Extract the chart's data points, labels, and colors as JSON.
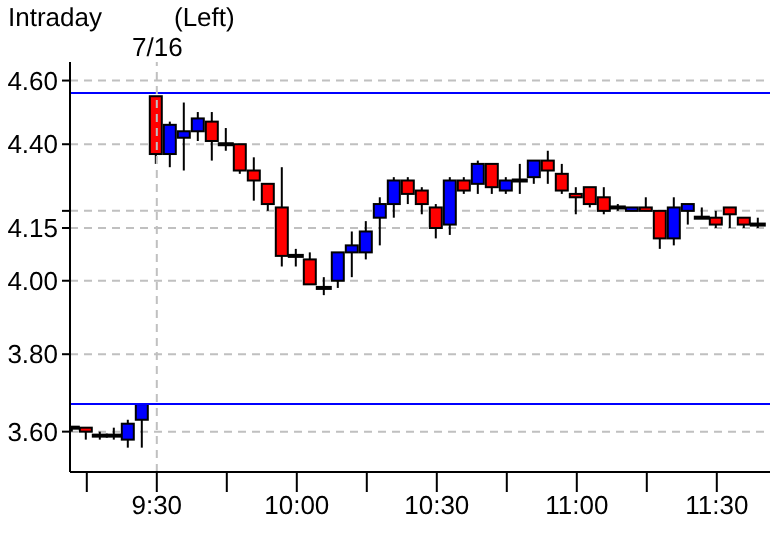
{
  "chart_data": {
    "type": "candlestick",
    "title": "Intraday",
    "subtitle": "(Left)",
    "x": [
      9.2,
      9.25,
      9.3,
      9.35,
      9.4,
      9.45,
      9.5,
      9.55,
      9.6,
      9.65,
      9.7,
      9.75,
      9.8,
      9.85,
      9.9,
      9.95,
      10,
      10.05,
      10.1,
      10.15,
      10.2,
      10.25,
      10.3,
      10.35,
      10.4,
      10.45,
      10.5,
      10.55,
      10.6,
      10.65,
      10.7,
      10.75,
      10.8,
      10.85,
      10.9,
      10.95,
      11,
      11.05,
      11.1,
      11.15,
      11.2,
      11.25,
      11.3,
      11.35,
      11.4,
      11.45,
      11.5,
      11.55,
      11.6,
      11.65
    ],
    "ohlc": [
      [
        3.61,
        3.61,
        3.6,
        3.61
      ],
      [
        3.61,
        3.61,
        3.58,
        3.6
      ],
      [
        3.59,
        3.6,
        3.58,
        3.59
      ],
      [
        3.59,
        3.61,
        3.58,
        3.59
      ],
      [
        3.58,
        3.63,
        3.56,
        3.62
      ],
      [
        3.63,
        3.67,
        3.56,
        3.67
      ],
      [
        4.55,
        4.55,
        4.34,
        4.37
      ],
      [
        4.37,
        4.47,
        4.33,
        4.46
      ],
      [
        4.42,
        4.53,
        4.32,
        4.44
      ],
      [
        4.44,
        4.5,
        4.41,
        4.48
      ],
      [
        4.47,
        4.5,
        4.35,
        4.41
      ],
      [
        4.4,
        4.45,
        4.38,
        4.4
      ],
      [
        4.4,
        4.4,
        4.31,
        4.32
      ],
      [
        4.32,
        4.36,
        4.23,
        4.29
      ],
      [
        4.28,
        4.28,
        4.2,
        4.22
      ],
      [
        4.21,
        4.33,
        4.04,
        4.07
      ],
      [
        4.07,
        4.09,
        4.04,
        4.07
      ],
      [
        4.06,
        4.08,
        3.99,
        3.99
      ],
      [
        3.98,
        4.01,
        3.96,
        3.98
      ],
      [
        4,
        4.08,
        3.98,
        4.08
      ],
      [
        4.08,
        4.14,
        4.01,
        4.1
      ],
      [
        4.08,
        4.17,
        4.06,
        4.14
      ],
      [
        4.18,
        4.24,
        4.1,
        4.22
      ],
      [
        4.22,
        4.3,
        4.18,
        4.29
      ],
      [
        4.29,
        4.3,
        4.22,
        4.25
      ],
      [
        4.26,
        4.27,
        4.19,
        4.22
      ],
      [
        4.21,
        4.22,
        4.12,
        4.15
      ],
      [
        4.16,
        4.3,
        4.13,
        4.29
      ],
      [
        4.29,
        4.3,
        4.25,
        4.26
      ],
      [
        4.28,
        4.35,
        4.25,
        4.34
      ],
      [
        4.34,
        4.34,
        4.25,
        4.27
      ],
      [
        4.26,
        4.3,
        4.25,
        4.29
      ],
      [
        4.29,
        4.34,
        4.25,
        4.29
      ],
      [
        4.3,
        4.35,
        4.28,
        4.35
      ],
      [
        4.35,
        4.38,
        4.28,
        4.32
      ],
      [
        4.31,
        4.34,
        4.25,
        4.26
      ],
      [
        4.25,
        4.27,
        4.19,
        4.24
      ],
      [
        4.27,
        4.27,
        4.21,
        4.22
      ],
      [
        4.24,
        4.27,
        4.19,
        4.2
      ],
      [
        4.21,
        4.22,
        4.2,
        4.21
      ],
      [
        4.2,
        4.21,
        4.2,
        4.21
      ],
      [
        4.21,
        4.24,
        4.2,
        4.2
      ],
      [
        4.2,
        4.2,
        4.09,
        4.12
      ],
      [
        4.12,
        4.24,
        4.1,
        4.21
      ],
      [
        4.2,
        4.22,
        4.16,
        4.22
      ],
      [
        4.18,
        4.21,
        4.18,
        4.18
      ],
      [
        4.18,
        4.2,
        4.15,
        4.16
      ],
      [
        4.21,
        4.21,
        4.15,
        4.19
      ],
      [
        4.18,
        4.18,
        4.15,
        4.16
      ],
      [
        4.16,
        4.18,
        4.15,
        4.16
      ]
    ],
    "colors": [
      "#000000",
      "#ff0000",
      "#000000",
      "#000000",
      "#0000ff",
      "#0000ff",
      "#ff0000",
      "#0000ff",
      "#0000ff",
      "#0000ff",
      "#ff0000",
      "#000000",
      "#ff0000",
      "#ff0000",
      "#ff0000",
      "#ff0000",
      "#000000",
      "#ff0000",
      "#000000",
      "#0000ff",
      "#0000ff",
      "#0000ff",
      "#0000ff",
      "#0000ff",
      "#ff0000",
      "#ff0000",
      "#ff0000",
      "#0000ff",
      "#ff0000",
      "#0000ff",
      "#ff0000",
      "#0000ff",
      "#000000",
      "#0000ff",
      "#ff0000",
      "#ff0000",
      "#ff0000",
      "#ff0000",
      "#ff0000",
      "#000000",
      "#0000ff",
      "#ff0000",
      "#ff0000",
      "#0000ff",
      "#0000ff",
      "#000000",
      "#ff0000",
      "#ff0000",
      "#ff0000",
      "#000000"
    ],
    "log": "y",
    "xlim": [
      9.19,
      11.69
    ],
    "ylim": [
      3.5,
      4.66
    ],
    "xticks": [
      {
        "value": 9.25,
        "label": null
      },
      {
        "value": 9.5,
        "label": "9:30"
      },
      {
        "value": 9.75,
        "label": null
      },
      {
        "value": 10,
        "label": "10:00"
      },
      {
        "value": 10.25,
        "label": null
      },
      {
        "value": 10.5,
        "label": "10:30"
      },
      {
        "value": 10.75,
        "label": null
      },
      {
        "value": 11,
        "label": "11:00"
      },
      {
        "value": 11.25,
        "label": null
      },
      {
        "value": 11.5,
        "label": "11:30"
      }
    ],
    "yticks": [
      {
        "value": 3.6,
        "label": "3.60"
      },
      {
        "value": 3.8,
        "label": "3.80"
      },
      {
        "value": 4,
        "label": "4.00"
      },
      {
        "value": 4.15,
        "label": "4.15"
      },
      {
        "value": 4.2,
        "label": null
      },
      {
        "value": 4.4,
        "label": "4.40"
      },
      {
        "value": 4.6,
        "label": "4.60"
      }
    ],
    "grid": "y",
    "ref_lines": [
      {
        "axis": "y",
        "value": 4.56,
        "color": "#0000ff",
        "line_style": "solid"
      },
      {
        "axis": "y",
        "value": 3.67,
        "color": "#0000ff",
        "line_style": "solid"
      },
      {
        "axis": "x",
        "value": 9.5,
        "color": "#c0c0c0",
        "line_style": "dashed"
      }
    ],
    "annotations": [
      "7/16"
    ]
  }
}
